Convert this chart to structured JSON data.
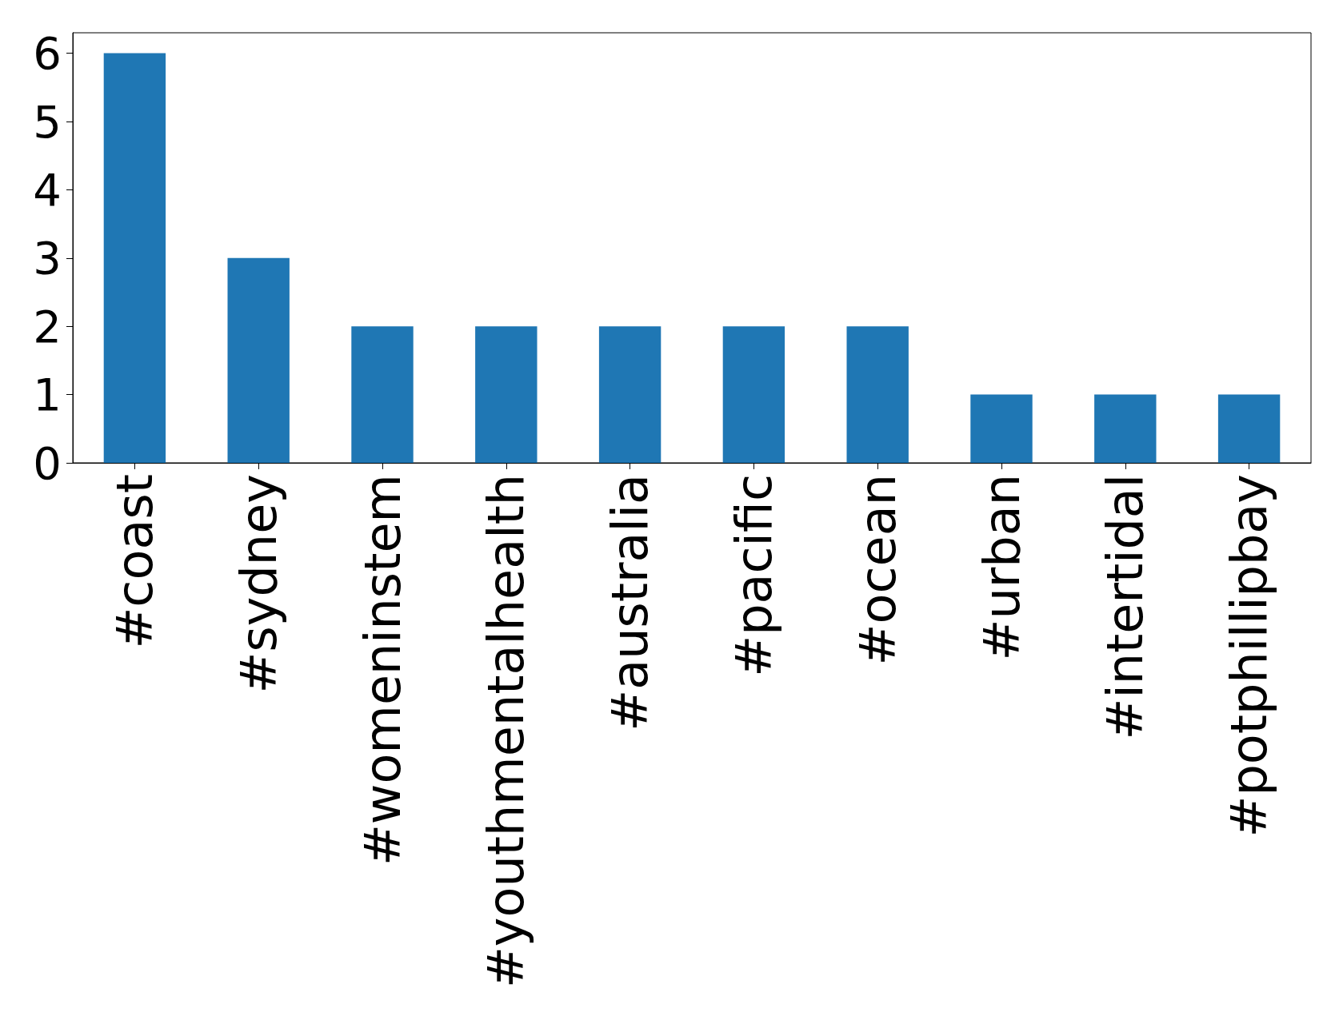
{
  "chart_data": {
    "type": "bar",
    "categories": [
      "#coast",
      "#sydney",
      "#womeninstem",
      "#youthmentalhealth",
      "#australia",
      "#pacific",
      "#ocean",
      "#urban",
      "#intertidal",
      "#potphillipbay"
    ],
    "values": [
      6,
      3,
      2,
      2,
      2,
      2,
      2,
      1,
      1,
      1
    ],
    "color": "#1f77b4",
    "ylim": [
      0,
      6.3
    ],
    "yticks": [
      0,
      1,
      2,
      3,
      4,
      5,
      6
    ],
    "grid": false
  }
}
